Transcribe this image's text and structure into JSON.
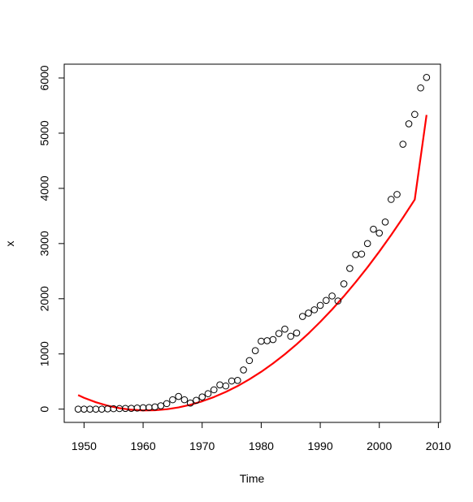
{
  "chart_data": {
    "type": "scatter",
    "title": "",
    "xlabel": "Time",
    "ylabel": "x",
    "xlim": [
      1946.64,
      2010.36
    ],
    "ylim": [
      -240.4,
      6250.4
    ],
    "xticks": [
      1950,
      1960,
      1970,
      1980,
      1990,
      2000,
      2010
    ],
    "yticks": [
      0,
      1000,
      2000,
      3000,
      4000,
      5000,
      6000
    ],
    "xtick_labels": [
      "1950",
      "1960",
      "1970",
      "1980",
      "1990",
      "2000",
      "2010"
    ],
    "ytick_labels": [
      "0",
      "1000",
      "2000",
      "3000",
      "4000",
      "5000",
      "6000"
    ],
    "grid": false,
    "series": [
      {
        "kind": "points",
        "marker": "open-circle",
        "color": "#000000",
        "x": [
          1949,
          1950,
          1951,
          1952,
          1953,
          1954,
          1955,
          1956,
          1957,
          1958,
          1959,
          1960,
          1961,
          1962,
          1963,
          1964,
          1965,
          1966,
          1967,
          1968,
          1969,
          1970,
          1971,
          1972,
          1973,
          1974,
          1975,
          1976,
          1977,
          1978,
          1979,
          1980,
          1981,
          1982,
          1983,
          1984,
          1985,
          1986,
          1987,
          1988,
          1989,
          1990,
          1991,
          1992,
          1993,
          1994,
          1995,
          1996,
          1997,
          1998,
          1999,
          2000,
          2001,
          2002,
          2003,
          2004,
          2005,
          2006,
          2007,
          2008
        ],
        "y": [
          0,
          0,
          0,
          0,
          0,
          5,
          8,
          10,
          12,
          15,
          20,
          25,
          30,
          40,
          60,
          100,
          170,
          230,
          170,
          110,
          160,
          220,
          280,
          350,
          440,
          420,
          510,
          520,
          710,
          880,
          1060,
          1230,
          1240,
          1260,
          1370,
          1450,
          1320,
          1380,
          1680,
          1740,
          1800,
          1880,
          1970,
          2050,
          1960,
          2270,
          2550,
          2800,
          2810,
          3000,
          3260,
          3190,
          3390,
          3800,
          3890,
          4800,
          5170,
          5340,
          5820,
          6010
        ]
      },
      {
        "kind": "line",
        "color": "#ff0000",
        "x": [
          1949,
          1950,
          1952,
          1954,
          1956,
          1958,
          1960,
          1962,
          1964,
          1966,
          1968,
          1970,
          1972,
          1974,
          1976,
          1978,
          1980,
          1982,
          1984,
          1986,
          1988,
          1990,
          1992,
          1994,
          1996,
          1998,
          2000,
          2002,
          2004,
          2006,
          2008
        ],
        "y": [
          255,
          205,
          125,
          62,
          17,
          -11,
          -23,
          -20,
          -2,
          31,
          79,
          142,
          219,
          311,
          418,
          540,
          676,
          828,
          994,
          1175,
          1370,
          1581,
          1806,
          2046,
          2301,
          2570,
          2855,
          3154,
          3468,
          3797,
          5330
        ]
      }
    ]
  }
}
